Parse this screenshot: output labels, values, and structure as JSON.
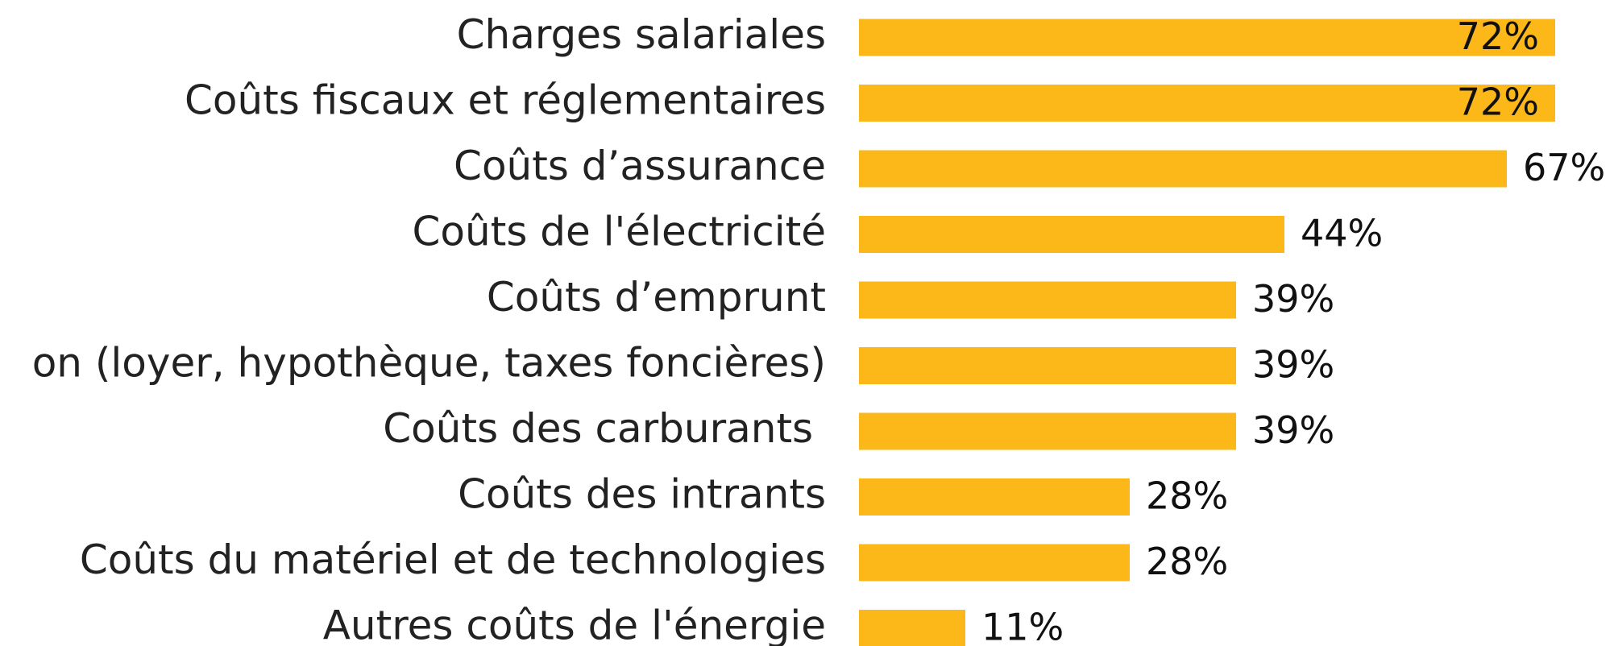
{
  "chart_data": {
    "type": "bar",
    "orientation": "horizontal",
    "categories": [
      "Charges salariales",
      "Coûts fiscaux et réglementaires",
      "Coûts d’assurance",
      "Coûts de l'électricité",
      "Coûts d’emprunt",
      "on (loyer, hypothèque, taxes foncières)",
      "Coûts des carburants ",
      "Coûts des intrants",
      "Coûts du matériel et de technologies",
      "Autres coûts de l'énergie"
    ],
    "values": [
      72,
      72,
      67,
      44,
      39,
      39,
      39,
      28,
      28,
      11
    ],
    "value_labels": [
      "72%",
      "72%",
      "67%",
      "44%",
      "39%",
      "39%",
      "39%",
      "28%",
      "28%",
      "11%"
    ],
    "color": "#fbb818"
  }
}
